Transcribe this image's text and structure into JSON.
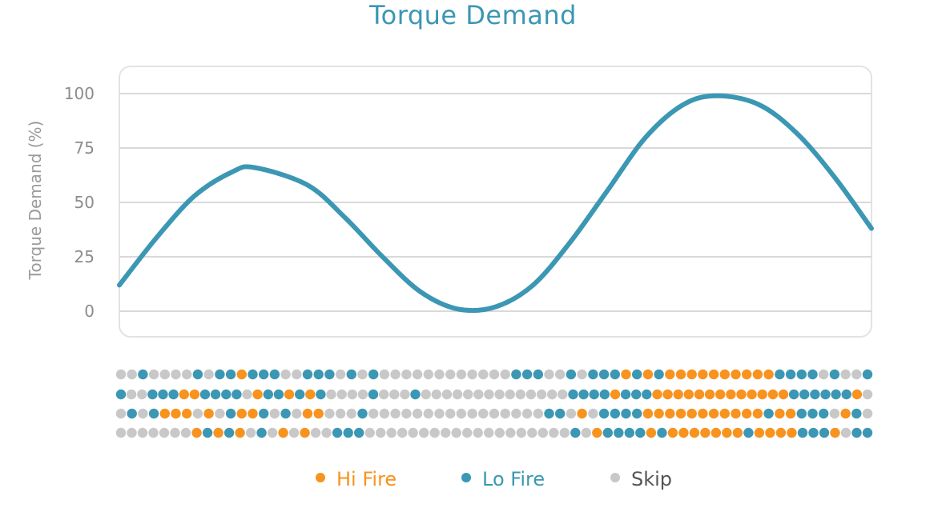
{
  "chart_data": {
    "type": "line",
    "title": "Torque Demand",
    "ylabel": "Torque Demand (%)",
    "xlabel": "",
    "ylim": [
      0,
      100
    ],
    "yticks": [
      "0",
      "25",
      "50",
      "75",
      "100"
    ],
    "grid": true,
    "series": [
      {
        "x": [
          0,
          0.05,
          0.1,
          0.15,
          0.18,
          0.25,
          0.3,
          0.35,
          0.4,
          0.45,
          0.5,
          0.55,
          0.6,
          0.65,
          0.7,
          0.75,
          0.795,
          0.85,
          0.9,
          0.95,
          1.0
        ],
        "values": [
          12,
          34,
          53,
          64,
          66,
          58,
          43,
          25,
          9,
          1,
          2,
          12,
          32,
          56,
          80,
          95,
          99,
          95,
          82,
          62,
          38
        ]
      }
    ],
    "fire_pattern": {
      "rows": [
        "SSLSSSSLSLLHLLLSSLLLSLSLSSSSSSSSSSSSLLLSSLSLLLHLHLHHHHHHHHHHLLLLSLSSL",
        "LSSLLLHHLLLLSHLLHLHLSSSSLSSSLSSSSSSSSSSSSSSLLLLHLLLHHHHHHHHHHHHHLLLLLLHS",
        "SLSLHHHSHSLHHLSLSHHSSSLSSSSSSSSSSSSSSSSLLSHSLLLLHHHHHHHHHHHLHHLLLSHLS",
        "SSSSSSSHLHLHSLSHSHSSLLLSSSSSSSSSSSSSSSSSSSLSHLLLLHLHHHHHHHLHHHHLLLHSLL"
      ],
      "key": {
        "H": "hi",
        "L": "lo",
        "S": "skip"
      }
    },
    "legend": [
      {
        "label": "Hi Fire",
        "color": "#f7931e"
      },
      {
        "label": "Lo Fire",
        "color": "#3b97b3"
      },
      {
        "label": "Skip",
        "color": "#c8c8c8"
      }
    ],
    "legend_position": "bottom"
  },
  "colors": {
    "line": "#3b97b3",
    "hi": "#f7931e",
    "lo": "#3b97b3",
    "skip": "#c8c8c8",
    "grid": "#d9d9d9",
    "axis_text": "#8c8c8c"
  }
}
